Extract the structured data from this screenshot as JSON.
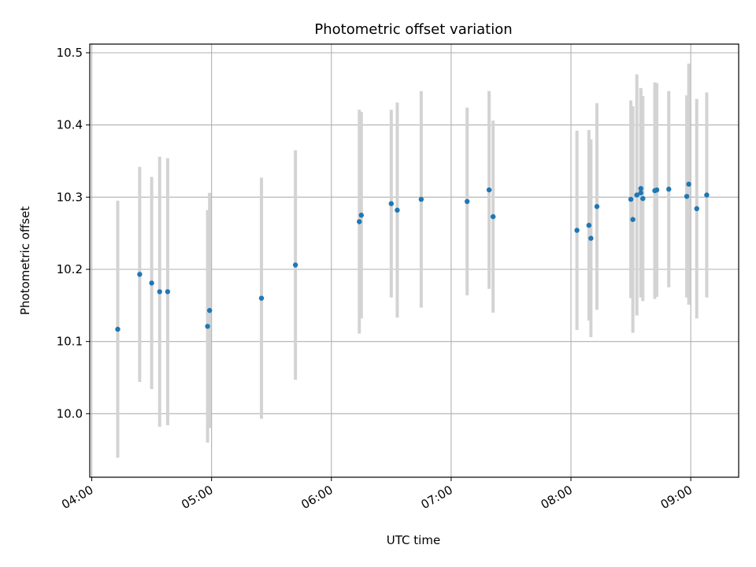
{
  "chart_data": {
    "type": "scatter",
    "title": "Photometric offset variation",
    "xlabel": "UTC time",
    "ylabel": "Photometric offset",
    "x_axis_kind": "time",
    "xlim": [
      "03:59",
      "09:24"
    ],
    "ylim": [
      9.912,
      10.512
    ],
    "x_ticks": [
      "04:00",
      "05:00",
      "06:00",
      "07:00",
      "08:00",
      "09:00"
    ],
    "y_ticks": [
      10.0,
      10.1,
      10.2,
      10.3,
      10.4,
      10.5
    ],
    "grid": true,
    "colors": {
      "point": "#1f77b4",
      "errorbar": "#d3d3d3",
      "grid": "#b0b0b0"
    },
    "points": [
      {
        "x": "04:13",
        "y": 10.117,
        "err": 0.178
      },
      {
        "x": "04:24",
        "y": 10.193,
        "err": 0.149
      },
      {
        "x": "04:30",
        "y": 10.181,
        "err": 0.147
      },
      {
        "x": "04:34",
        "y": 10.169,
        "err": 0.187
      },
      {
        "x": "04:38",
        "y": 10.169,
        "err": 0.185
      },
      {
        "x": "04:58",
        "y": 10.121,
        "err": 0.161
      },
      {
        "x": "04:59",
        "y": 10.143,
        "err": 0.163
      },
      {
        "x": "05:25",
        "y": 10.16,
        "err": 0.167
      },
      {
        "x": "05:42",
        "y": 10.206,
        "err": 0.159
      },
      {
        "x": "06:14",
        "y": 10.266,
        "err": 0.155
      },
      {
        "x": "06:15",
        "y": 10.275,
        "err": 0.143
      },
      {
        "x": "06:30",
        "y": 10.291,
        "err": 0.13
      },
      {
        "x": "06:33",
        "y": 10.282,
        "err": 0.149
      },
      {
        "x": "06:45",
        "y": 10.297,
        "err": 0.15
      },
      {
        "x": "07:08",
        "y": 10.294,
        "err": 0.13
      },
      {
        "x": "07:19",
        "y": 10.31,
        "err": 0.137
      },
      {
        "x": "07:21",
        "y": 10.273,
        "err": 0.133
      },
      {
        "x": "08:03",
        "y": 10.254,
        "err": 0.138
      },
      {
        "x": "08:09",
        "y": 10.261,
        "err": 0.132
      },
      {
        "x": "08:10",
        "y": 10.243,
        "err": 0.137
      },
      {
        "x": "08:13",
        "y": 10.287,
        "err": 0.143
      },
      {
        "x": "08:30",
        "y": 10.297,
        "err": 0.137
      },
      {
        "x": "08:31",
        "y": 10.269,
        "err": 0.157
      },
      {
        "x": "08:33",
        "y": 10.303,
        "err": 0.167
      },
      {
        "x": "08:35",
        "y": 10.312,
        "err": 0.139
      },
      {
        "x": "08:35",
        "y": 10.306,
        "err": 0.145
      },
      {
        "x": "08:36",
        "y": 10.298,
        "err": 0.142
      },
      {
        "x": "08:42",
        "y": 10.309,
        "err": 0.15
      },
      {
        "x": "08:43",
        "y": 10.31,
        "err": 0.148
      },
      {
        "x": "08:49",
        "y": 10.311,
        "err": 0.136
      },
      {
        "x": "08:58",
        "y": 10.301,
        "err": 0.14
      },
      {
        "x": "08:59",
        "y": 10.318,
        "err": 0.167
      },
      {
        "x": "09:03",
        "y": 10.284,
        "err": 0.152
      },
      {
        "x": "09:08",
        "y": 10.303,
        "err": 0.142
      }
    ]
  }
}
